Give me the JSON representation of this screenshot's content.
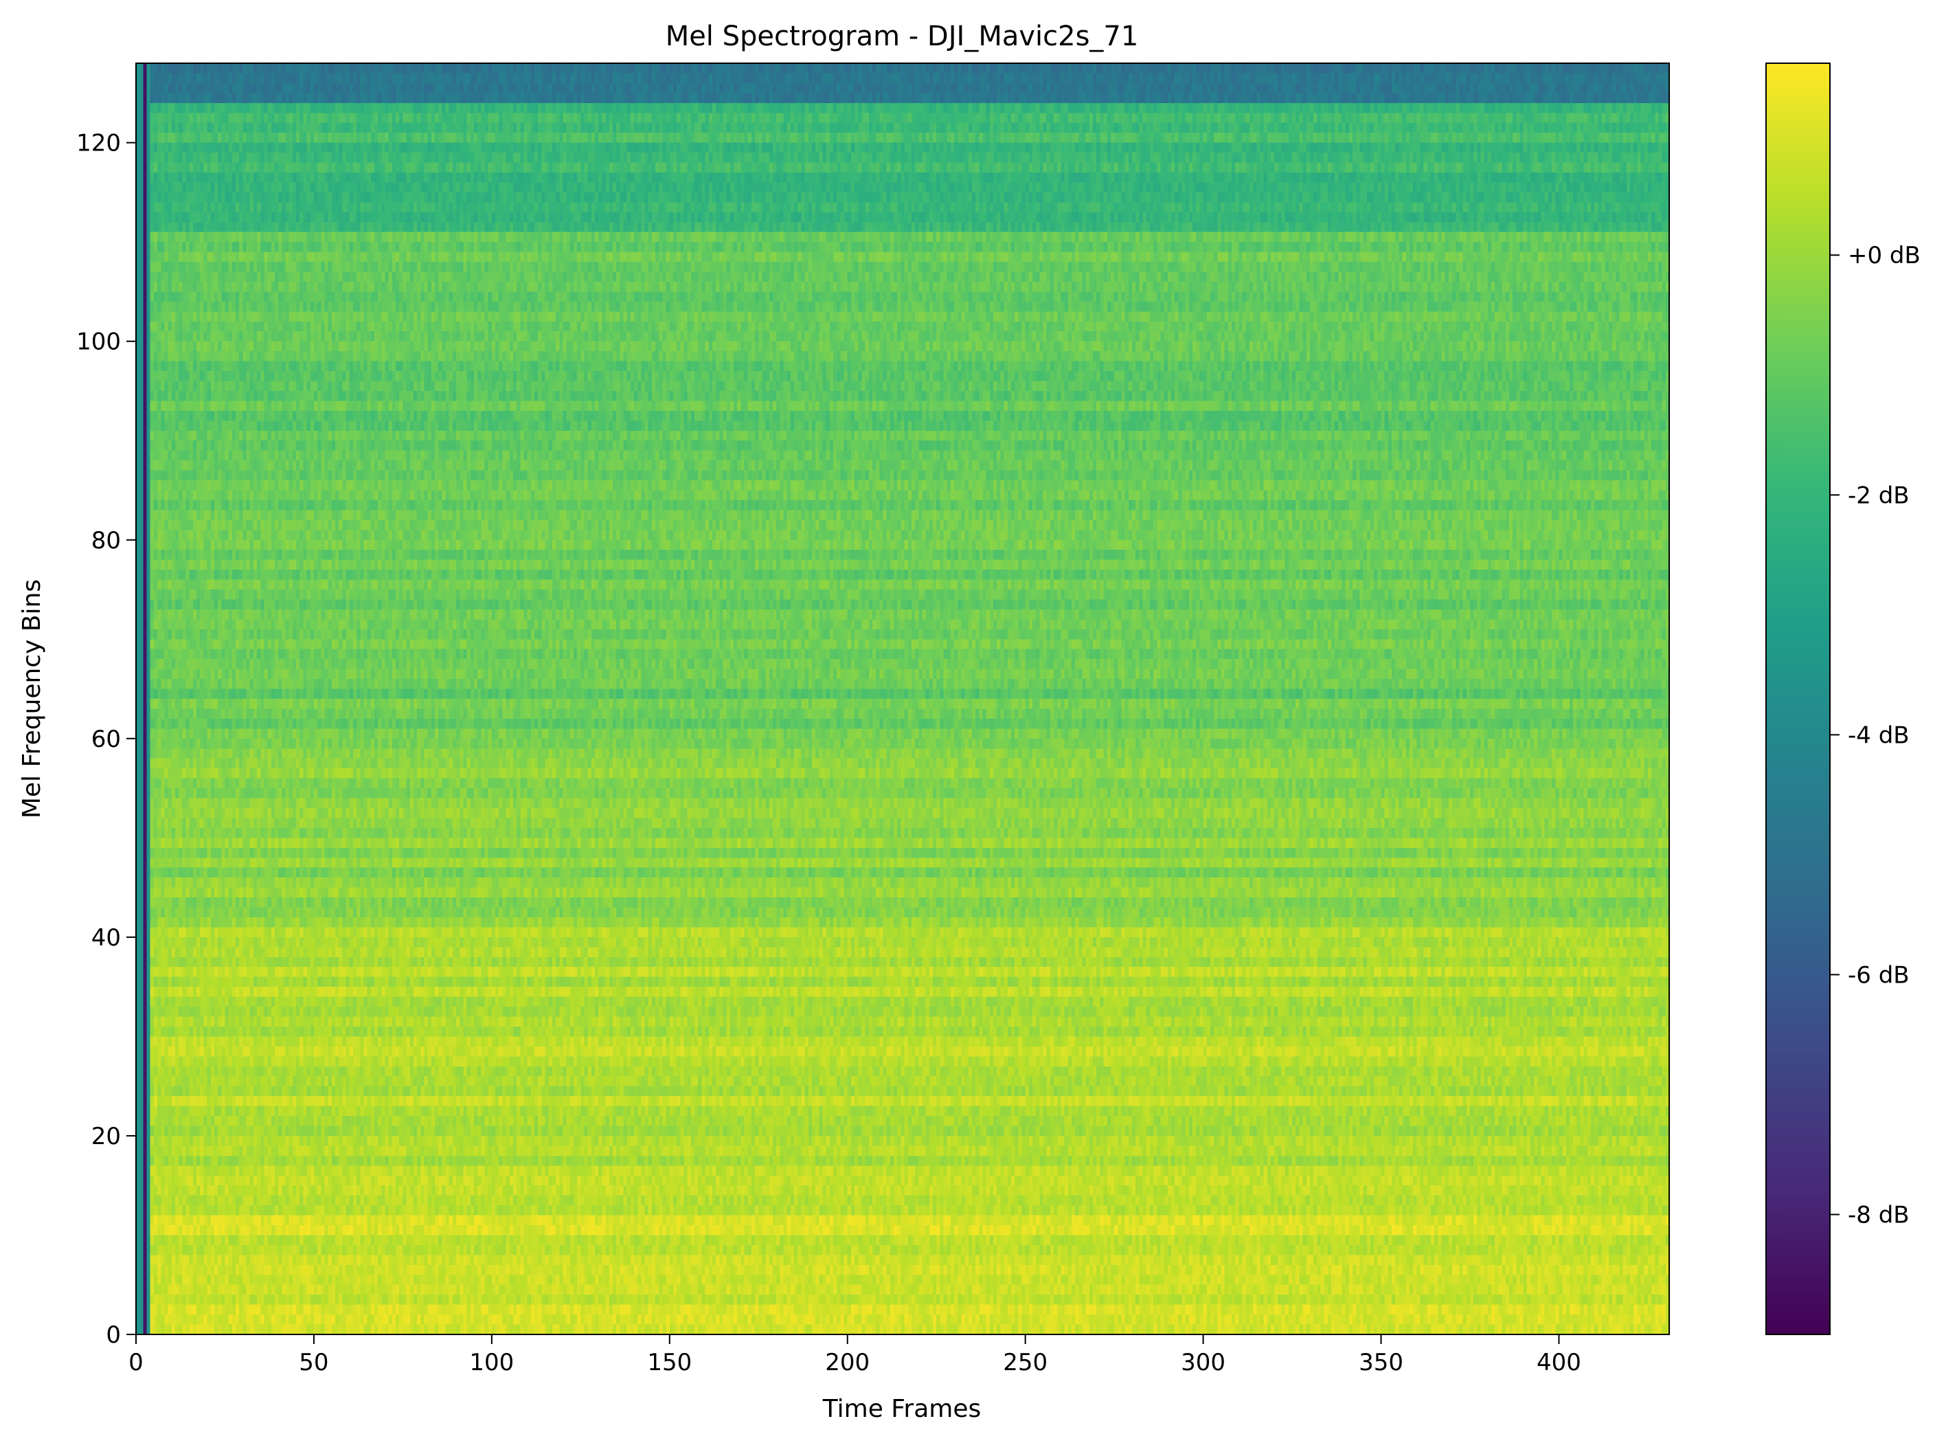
{
  "chart_data": {
    "type": "heatmap",
    "title": "Mel Spectrogram - DJI_Mavic2s_71",
    "xlabel": "Time Frames",
    "ylabel": "Mel Frequency Bins",
    "xlim": [
      0,
      431
    ],
    "ylim": [
      0,
      128
    ],
    "x_ticks": [
      0,
      50,
      100,
      150,
      200,
      250,
      300,
      350,
      400
    ],
    "y_ticks": [
      0,
      20,
      40,
      60,
      80,
      100,
      120
    ],
    "colormap": "viridis",
    "colorbar": {
      "range": [
        -9,
        1.6
      ],
      "ticks": [
        {
          "value": 0,
          "label": "+0 dB"
        },
        {
          "value": -2,
          "label": "-2 dB"
        },
        {
          "value": -4,
          "label": "-4 dB"
        },
        {
          "value": -6,
          "label": "-6 dB"
        },
        {
          "value": -8,
          "label": "-8 dB"
        }
      ]
    },
    "frequency_profile": [
      {
        "bin_from": 0,
        "bin_to": 7,
        "db": 0.9
      },
      {
        "bin_from": 8,
        "bin_to": 12,
        "db": 0.7
      },
      {
        "bin_from": 13,
        "bin_to": 40,
        "db": 0.4
      },
      {
        "bin_from": 41,
        "bin_to": 60,
        "db": -0.3
      },
      {
        "bin_from": 61,
        "bin_to": 80,
        "db": -0.9
      },
      {
        "bin_from": 81,
        "bin_to": 110,
        "db": -1.0
      },
      {
        "bin_from": 111,
        "bin_to": 123,
        "db": -1.8
      },
      {
        "bin_from": 124,
        "bin_to": 127,
        "db": -5.0
      }
    ],
    "dark_onset_frames": [
      0,
      3
    ],
    "grid": false
  },
  "colors": {
    "viridis": [
      "#440154",
      "#482878",
      "#3e4989",
      "#31688e",
      "#26828e",
      "#1f9e89",
      "#35b779",
      "#6ece58",
      "#b5de2b",
      "#fde725"
    ],
    "axis": "#000000",
    "background": "#ffffff"
  }
}
